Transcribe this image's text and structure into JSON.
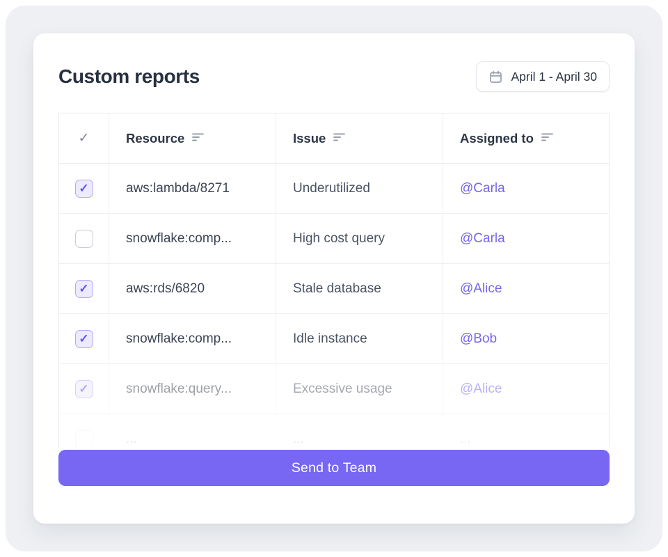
{
  "card": {
    "title": "Custom reports"
  },
  "date_range": {
    "label": "April 1 - April 30"
  },
  "table": {
    "select_all_glyph": "✓",
    "checkbox_check_glyph": "✓",
    "columns": [
      {
        "label": "Resource"
      },
      {
        "label": "Issue"
      },
      {
        "label": "Assigned to"
      }
    ],
    "rows": [
      {
        "checked": true,
        "resource": "aws:lambda/8271",
        "issue": "Underutilized",
        "assigned_to": "@Carla",
        "faded": false,
        "partial": false
      },
      {
        "checked": false,
        "resource": "snowflake:comp...",
        "issue": "High cost query",
        "assigned_to": "@Carla",
        "faded": false,
        "partial": false
      },
      {
        "checked": true,
        "resource": "aws:rds/6820",
        "issue": "Stale database",
        "assigned_to": "@Alice",
        "faded": false,
        "partial": false
      },
      {
        "checked": true,
        "resource": "snowflake:comp...",
        "issue": "Idle instance",
        "assigned_to": "@Bob",
        "faded": false,
        "partial": false
      },
      {
        "checked": true,
        "resource": "snowflake:query...",
        "issue": "Excessive usage",
        "assigned_to": "@Alice",
        "faded": true,
        "partial": false
      },
      {
        "checked": false,
        "resource": "...",
        "issue": "...",
        "assigned_to": "...",
        "faded": false,
        "partial": true
      }
    ]
  },
  "cta": {
    "label": "Send to Team"
  },
  "icons": {
    "calendar": "calendar-icon",
    "sort": "sort-icon",
    "select_all": "select-all-check-icon"
  },
  "colors": {
    "accent": "#7767f3",
    "mention": "#7566ee",
    "panel_background": "#eef0f3",
    "card_background": "#ffffff",
    "table_border": "#e9ebef",
    "checkbox_checked_bg": "#eceafd",
    "checkbox_checked_border": "#b4a8f8",
    "checkbox_check": "#6553f0",
    "title_text": "#27303f"
  }
}
